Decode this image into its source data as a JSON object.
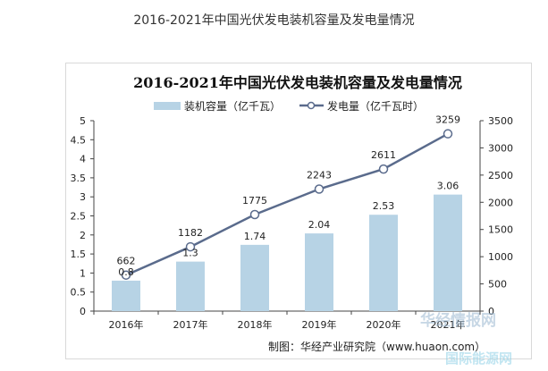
{
  "page": {
    "caption": "2016-2021年中国光伏发电装机容量及发电量情况"
  },
  "chart_data": {
    "type": "bar",
    "title": "2016-2021年中国光伏发电装机容量及发电量情况",
    "categories": [
      "2016年",
      "2017年",
      "2018年",
      "2019年",
      "2020年",
      "2021年"
    ],
    "series": [
      {
        "name": "装机容量（亿千瓦）",
        "type": "bar",
        "axis": "left",
        "values": [
          0.8,
          1.3,
          1.74,
          2.04,
          2.53,
          3.06
        ],
        "color": "#b7d3e5"
      },
      {
        "name": "发电量（亿千瓦时）",
        "type": "line",
        "axis": "right",
        "values": [
          662,
          1182,
          1775,
          2243,
          2611,
          3259
        ],
        "color": "#5a6b8c"
      }
    ],
    "y_left": {
      "min": 0,
      "max": 5,
      "ticks": [
        "0",
        "0.5",
        "1",
        "1.5",
        "2",
        "2.5",
        "3",
        "3.5",
        "4",
        "4.5",
        "5"
      ]
    },
    "y_right": {
      "min": 0,
      "max": 3500,
      "ticks": [
        "0",
        "500",
        "1000",
        "1500",
        "2000",
        "2500",
        "3000",
        "3500"
      ]
    },
    "grid": false,
    "legend_position": "top"
  },
  "credit": "制图：华经产业研究院（www.huaon.com）",
  "watermark": {
    "line1": "华经情报网",
    "line2": "国际能源网"
  }
}
